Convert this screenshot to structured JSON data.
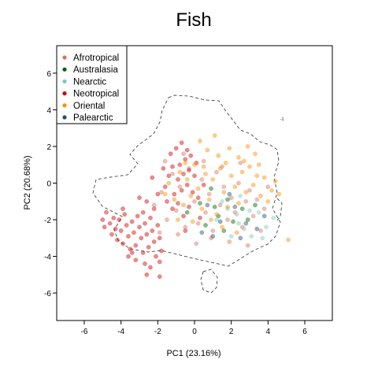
{
  "chart_data": {
    "type": "scatter",
    "title": "Fish",
    "xlabel": "PC1 (23.16%)",
    "ylabel": "PC2 (20.68%)",
    "xlim": [
      -7.5,
      7.5
    ],
    "ylim": [
      -7.5,
      7.5
    ],
    "xticks": [
      -6,
      -4,
      -2,
      0,
      2,
      4,
      6
    ],
    "yticks": [
      -6,
      -4,
      -2,
      0,
      2,
      4,
      6
    ],
    "xtick_labels": [
      "-6",
      "-4",
      "-2",
      "0",
      "2",
      "4",
      "6"
    ],
    "ytick_labels": [
      "-6",
      "-4",
      "-2",
      "0",
      "2",
      "4",
      "6"
    ],
    "grid": false,
    "legend": {
      "position": "top-left",
      "entries": [
        "Afrotropical",
        "Australasia",
        "Nearctic",
        "Neotropical",
        "Oriental",
        "Palearctic"
      ]
    },
    "series": [
      {
        "name": "Afrotropical",
        "color": "#d4735e",
        "points": [
          [
            -2.2,
            -1.2
          ],
          [
            -1.8,
            -0.5
          ],
          [
            -1.5,
            -2.0
          ],
          [
            -1.2,
            0.5
          ],
          [
            -1.0,
            -1.5
          ],
          [
            -0.8,
            -0.2
          ],
          [
            -0.5,
            -2.4
          ],
          [
            -0.3,
            0.8
          ],
          [
            0.0,
            -1.0
          ],
          [
            0.2,
            -2.2
          ],
          [
            0.4,
            0.2
          ],
          [
            0.6,
            -1.6
          ],
          [
            0.8,
            -0.6
          ],
          [
            1.0,
            -2.6
          ],
          [
            1.2,
            0.6
          ],
          [
            1.4,
            -1.2
          ],
          [
            1.6,
            -0.2
          ],
          [
            1.8,
            -2.0
          ],
          [
            2.0,
            -0.8
          ],
          [
            2.2,
            -1.6
          ],
          [
            2.4,
            0.0
          ],
          [
            2.6,
            -2.4
          ],
          [
            2.8,
            -1.0
          ],
          [
            3.0,
            -0.4
          ],
          [
            3.2,
            -1.8
          ],
          [
            3.4,
            -0.9
          ],
          [
            3.6,
            -2.6
          ],
          [
            3.8,
            -1.4
          ],
          [
            4.0,
            -0.2
          ],
          [
            -1.6,
            1.2
          ],
          [
            -0.6,
            1.6
          ],
          [
            0.5,
            1.2
          ],
          [
            1.5,
            0.9
          ],
          [
            2.5,
            1.1
          ],
          [
            0.9,
            -3.0
          ],
          [
            1.9,
            -3.2
          ],
          [
            2.9,
            -3.4
          ],
          [
            -0.9,
            -2.8
          ],
          [
            -1.9,
            -2.7
          ],
          [
            0.1,
            -3.3
          ]
        ]
      },
      {
        "name": "Australasia",
        "color": "#006400",
        "points": [
          [
            0.3,
            -1.1
          ],
          [
            0.9,
            -0.3
          ],
          [
            1.3,
            -1.8
          ],
          [
            1.8,
            -0.9
          ],
          [
            2.1,
            -2.1
          ],
          [
            2.6,
            -1.4
          ],
          [
            0.6,
            -2.3
          ],
          [
            1.6,
            -2.6
          ],
          [
            2.9,
            -2.0
          ],
          [
            3.3,
            -1.2
          ],
          [
            -0.4,
            -1.6
          ],
          [
            1.1,
            -1.3
          ]
        ]
      },
      {
        "name": "Nearctic",
        "color": "#7fc8c0",
        "points": [
          [
            1.5,
            -1.0
          ],
          [
            2.3,
            -1.7
          ],
          [
            2.7,
            -2.5
          ],
          [
            3.1,
            -2.9
          ],
          [
            3.5,
            -1.6
          ],
          [
            3.9,
            -2.4
          ],
          [
            2.0,
            -2.9
          ],
          [
            1.2,
            -2.0
          ],
          [
            3.7,
            -3.0
          ],
          [
            2.5,
            -0.7
          ],
          [
            4.3,
            -1.9
          ],
          [
            3.0,
            -1.5
          ],
          [
            1.8,
            -1.4
          ],
          [
            2.4,
            -2.2
          ]
        ]
      },
      {
        "name": "Neotropical",
        "color": "#cc0000",
        "points": [
          [
            -4.8,
            -1.6
          ],
          [
            -4.6,
            -2.2
          ],
          [
            -4.5,
            -2.8
          ],
          [
            -4.4,
            -1.9
          ],
          [
            -4.3,
            -2.5
          ],
          [
            -4.2,
            -3.1
          ],
          [
            -4.1,
            -2.0
          ],
          [
            -4.0,
            -2.6
          ],
          [
            -3.9,
            -3.3
          ],
          [
            -3.8,
            -1.7
          ],
          [
            -3.7,
            -2.3
          ],
          [
            -3.6,
            -2.9
          ],
          [
            -3.5,
            -3.6
          ],
          [
            -3.4,
            -2.1
          ],
          [
            -3.3,
            -2.7
          ],
          [
            -3.2,
            -3.4
          ],
          [
            -3.1,
            -1.8
          ],
          [
            -3.0,
            -2.4
          ],
          [
            -2.9,
            -3.0
          ],
          [
            -2.8,
            -3.8
          ],
          [
            -2.7,
            -2.2
          ],
          [
            -2.6,
            -2.8
          ],
          [
            -2.5,
            -3.5
          ],
          [
            -2.4,
            -1.9
          ],
          [
            -2.3,
            -2.6
          ],
          [
            -2.2,
            -3.2
          ],
          [
            -2.1,
            -4.0
          ],
          [
            -2.0,
            -2.3
          ],
          [
            -1.9,
            -3.0
          ],
          [
            -1.8,
            -3.7
          ],
          [
            -3.6,
            -4.0
          ],
          [
            -3.2,
            -4.2
          ],
          [
            -2.7,
            -4.4
          ],
          [
            -2.4,
            -4.6
          ],
          [
            -1.9,
            -4.3
          ],
          [
            -4.9,
            -2.4
          ],
          [
            -5.0,
            -2.0
          ],
          [
            -3.9,
            -1.4
          ],
          [
            -2.8,
            -1.6
          ],
          [
            -2.2,
            -1.4
          ],
          [
            -1.6,
            -0.2
          ],
          [
            -1.4,
            0.4
          ],
          [
            -1.2,
            0.9
          ],
          [
            -1.1,
            -0.6
          ],
          [
            -0.9,
            0.2
          ],
          [
            -0.8,
            1.0
          ],
          [
            -0.7,
            -0.4
          ],
          [
            -0.6,
            0.5
          ],
          [
            -0.5,
            1.3
          ],
          [
            -0.4,
            -0.1
          ],
          [
            -0.3,
            0.7
          ],
          [
            -0.2,
            1.5
          ],
          [
            -0.1,
            -0.5
          ],
          [
            0.0,
            0.4
          ],
          [
            0.1,
            1.1
          ],
          [
            -1.3,
            1.6
          ],
          [
            -1.0,
            1.9
          ],
          [
            -0.7,
            2.2
          ],
          [
            -0.4,
            1.8
          ],
          [
            -1.5,
            -1.0
          ],
          [
            -1.2,
            -1.4
          ],
          [
            -0.9,
            -1.1
          ],
          [
            -0.6,
            -1.8
          ],
          [
            -0.3,
            -1.3
          ],
          [
            0.2,
            -0.8
          ],
          [
            -2.3,
            0.3
          ],
          [
            -2.0,
            -0.6
          ],
          [
            -1.7,
            0.8
          ],
          [
            -3.0,
            -0.8
          ],
          [
            -2.6,
            -1.0
          ],
          [
            -0.5,
            -2.6
          ],
          [
            0.3,
            -1.9
          ],
          [
            0.5,
            -0.1
          ],
          [
            -1.9,
            -5.1
          ],
          [
            -2.6,
            -5.0
          ],
          [
            -3.4,
            -3.8
          ]
        ]
      },
      {
        "name": "Oriental",
        "color": "#ff8c00",
        "points": [
          [
            -1.4,
            0.0
          ],
          [
            -1.1,
            -0.9
          ],
          [
            -0.8,
            0.6
          ],
          [
            -0.6,
            -1.2
          ],
          [
            -0.4,
            0.2
          ],
          [
            -0.2,
            -0.7
          ],
          [
            0.0,
            1.0
          ],
          [
            0.2,
            -0.3
          ],
          [
            0.4,
            -1.4
          ],
          [
            0.6,
            0.5
          ],
          [
            0.8,
            -0.9
          ],
          [
            1.0,
            0.2
          ],
          [
            1.2,
            -1.7
          ],
          [
            1.4,
            0.8
          ],
          [
            1.6,
            -0.5
          ],
          [
            1.8,
            -1.3
          ],
          [
            2.0,
            0.4
          ],
          [
            2.2,
            -0.2
          ],
          [
            2.4,
            -1.1
          ],
          [
            2.6,
            0.6
          ],
          [
            2.8,
            -0.5
          ],
          [
            3.0,
            0.9
          ],
          [
            3.2,
            -0.1
          ],
          [
            3.4,
            0.4
          ],
          [
            3.6,
            -0.7
          ],
          [
            3.8,
            0.3
          ],
          [
            4.0,
            -1.0
          ],
          [
            4.2,
            -0.4
          ],
          [
            4.4,
            0.1
          ],
          [
            0.7,
            1.8
          ],
          [
            1.3,
            1.5
          ],
          [
            1.9,
            1.9
          ],
          [
            2.4,
            1.4
          ],
          [
            2.9,
            2.0
          ],
          [
            3.3,
            1.6
          ],
          [
            -0.9,
            -2.0
          ],
          [
            -0.1,
            -2.1
          ],
          [
            0.9,
            -2.0
          ],
          [
            1.5,
            -2.4
          ],
          [
            2.3,
            -2.7
          ],
          [
            0.3,
            2.3
          ],
          [
            1.1,
            2.6
          ],
          [
            -1.6,
            -0.6
          ],
          [
            -0.5,
            1.1
          ],
          [
            0.5,
            0.9
          ],
          [
            1.7,
            1.1
          ],
          [
            2.7,
            1.2
          ],
          [
            3.5,
            1.0
          ],
          [
            4.6,
            -0.6
          ],
          [
            5.1,
            -3.1
          ]
        ]
      },
      {
        "name": "Palearctic",
        "color": "#1f4e79",
        "points": [
          [
            0.7,
            -1.2
          ],
          [
            1.4,
            -2.1
          ],
          [
            2.2,
            -1.3
          ],
          [
            2.8,
            -2.2
          ],
          [
            3.4,
            -2.5
          ],
          [
            1.9,
            -0.6
          ],
          [
            0.4,
            -2.7
          ],
          [
            3.8,
            -1.8
          ],
          [
            1.0,
            -2.9
          ],
          [
            2.5,
            -3.0
          ]
        ]
      }
    ]
  }
}
